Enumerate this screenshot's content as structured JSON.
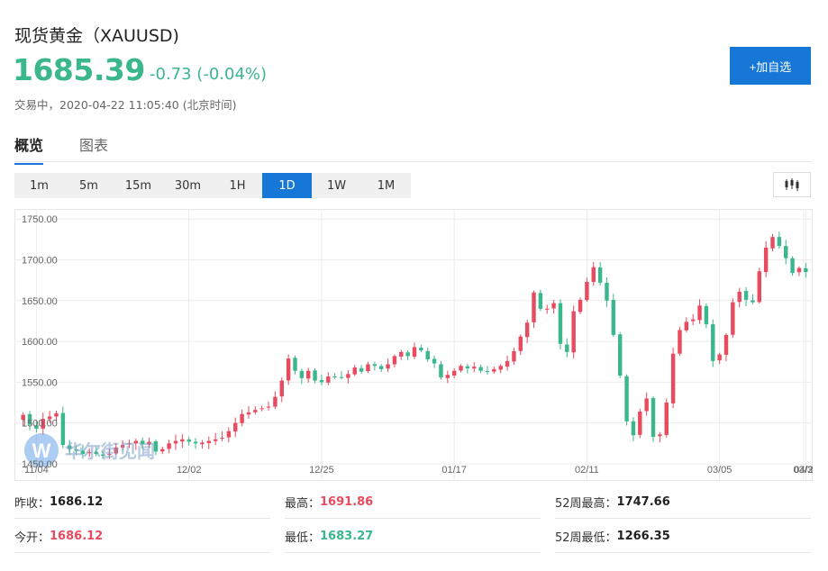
{
  "header": {
    "title": "现货黄金（XAUUSD)",
    "price": "1685.39",
    "change": "-0.73 (-0.04%)",
    "status": "交易中，2020-04-22 11:05:40 (北京时间)",
    "add_button": "+加自选"
  },
  "tabs": [
    {
      "label": "概览",
      "active": true
    },
    {
      "label": "图表",
      "active": false
    }
  ],
  "periods": [
    {
      "label": "1m",
      "active": false
    },
    {
      "label": "5m",
      "active": false
    },
    {
      "label": "15m",
      "active": false
    },
    {
      "label": "30m",
      "active": false
    },
    {
      "label": "1H",
      "active": false
    },
    {
      "label": "1D",
      "active": true
    },
    {
      "label": "1W",
      "active": false
    },
    {
      "label": "1M",
      "active": false
    }
  ],
  "watermark": "华尔街见闻",
  "colors": {
    "up": "#e84a5f",
    "down": "#3ab78b",
    "accent": "#1677d6"
  },
  "chart_data": {
    "type": "candlestick",
    "y_ticks": [
      "1750.00",
      "1700.00",
      "1650.00",
      "1600.00",
      "1550.00",
      "1500.00",
      "1450.00"
    ],
    "ylim": [
      1440,
      1758
    ],
    "x_labels": [
      "11/04",
      "12/02",
      "12/25",
      "01/17",
      "02/11",
      "03/05",
      "03/30",
      "04/2"
    ],
    "grid": true,
    "closes": [
      1510,
      1498,
      1493,
      1505,
      1508,
      1512,
      1473,
      1468,
      1466,
      1462,
      1464,
      1462,
      1460,
      1462,
      1470,
      1473,
      1475,
      1478,
      1474,
      1477,
      1465,
      1468,
      1475,
      1478,
      1480,
      1477,
      1475,
      1476,
      1478,
      1480,
      1482,
      1490,
      1500,
      1511,
      1513,
      1516,
      1518,
      1520,
      1532,
      1552,
      1579,
      1564,
      1555,
      1564,
      1552,
      1550,
      1557,
      1557,
      1556,
      1560,
      1568,
      1563,
      1572,
      1570,
      1566,
      1572,
      1582,
      1587,
      1582,
      1593,
      1589,
      1578,
      1573,
      1556,
      1559,
      1564,
      1570,
      1567,
      1569,
      1564,
      1563,
      1566,
      1570,
      1576,
      1588,
      1606,
      1623,
      1660,
      1640,
      1640,
      1647,
      1597,
      1587,
      1637,
      1651,
      1673,
      1691,
      1672,
      1650,
      1608,
      1558,
      1502,
      1485,
      1514,
      1530,
      1483,
      1486,
      1525,
      1585,
      1614,
      1624,
      1627,
      1644,
      1621,
      1576,
      1584,
      1608,
      1648,
      1661,
      1651,
      1648,
      1686,
      1715,
      1728,
      1717,
      1702,
      1684,
      1690,
      1685
    ]
  },
  "stats": [
    {
      "label": "昨收：",
      "value": "1686.12",
      "tone": "neutral"
    },
    {
      "label": "最高：",
      "value": "1691.86",
      "tone": "up"
    },
    {
      "label": "52周最高：",
      "value": "1747.66",
      "tone": "neutral"
    },
    {
      "label": "今开：",
      "value": "1686.12",
      "tone": "up"
    },
    {
      "label": "最低：",
      "value": "1683.27",
      "tone": "down"
    },
    {
      "label": "52周最低：",
      "value": "1266.35",
      "tone": "neutral"
    }
  ]
}
